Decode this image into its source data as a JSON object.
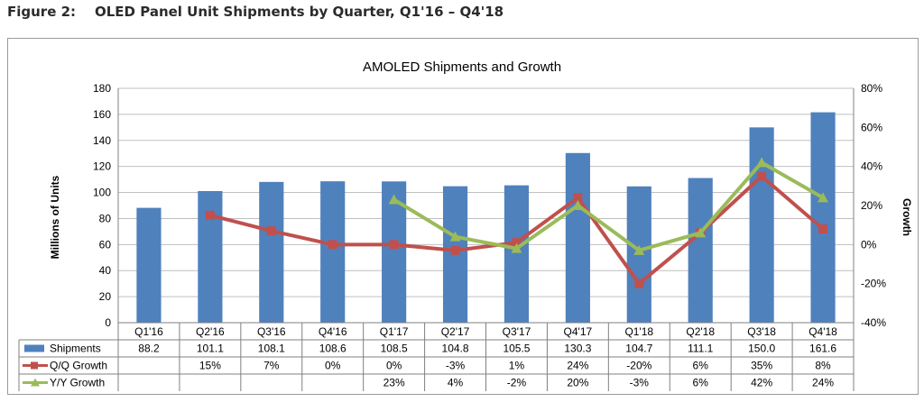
{
  "figure": {
    "number": "Figure 2:",
    "title": "OLED Panel Unit Shipments by Quarter, Q1'16 – Q4'18"
  },
  "colors": {
    "bars": "#4f81bd",
    "qq": "#c0504d",
    "yy": "#9bbb59",
    "grid": "#bfbfbf"
  },
  "chart_data": {
    "type": "bar",
    "title": "AMOLED Shipments and Growth",
    "ylabel": "Millions of Units",
    "y2label": "Growth",
    "ylim": [
      0,
      180
    ],
    "y2lim": [
      -40,
      80
    ],
    "yticks": [
      "0",
      "20",
      "40",
      "60",
      "80",
      "100",
      "120",
      "140",
      "160",
      "180"
    ],
    "y2ticks": [
      "-40%",
      "-20%",
      "0%",
      "20%",
      "40%",
      "60%",
      "80%"
    ],
    "grid": true,
    "categories": [
      "Q1'16",
      "Q2'16",
      "Q3'16",
      "Q4'16",
      "Q1'17",
      "Q2'17",
      "Q3'17",
      "Q4'17",
      "Q1'18",
      "Q2'18",
      "Q3'18",
      "Q4'18"
    ],
    "series": [
      {
        "name": "Shipments",
        "type": "bar",
        "axis": "left",
        "values": [
          88.2,
          101.1,
          108.1,
          108.6,
          108.5,
          104.8,
          105.5,
          130.3,
          104.7,
          111.1,
          150.0,
          161.6
        ],
        "labels": [
          "88.2",
          "101.1",
          "108.1",
          "108.6",
          "108.5",
          "104.8",
          "105.5",
          "130.3",
          "104.7",
          "111.1",
          "150.0",
          "161.6"
        ]
      },
      {
        "name": "Q/Q Growth",
        "type": "line",
        "marker": "square",
        "axis": "right",
        "values": [
          null,
          15,
          7,
          0,
          0,
          -3,
          1,
          24,
          -20,
          6,
          35,
          8
        ],
        "labels": [
          "",
          "15%",
          "7%",
          "0%",
          "0%",
          "-3%",
          "1%",
          "24%",
          "-20%",
          "6%",
          "35%",
          "8%"
        ]
      },
      {
        "name": "Y/Y Growth",
        "type": "line",
        "marker": "triangle",
        "axis": "right",
        "values": [
          null,
          null,
          null,
          null,
          23,
          4,
          -2,
          20,
          -3,
          6,
          42,
          24
        ],
        "labels": [
          "",
          "",
          "",
          "",
          "23%",
          "4%",
          "-2%",
          "20%",
          "-3%",
          "6%",
          "42%",
          "24%"
        ]
      }
    ]
  }
}
